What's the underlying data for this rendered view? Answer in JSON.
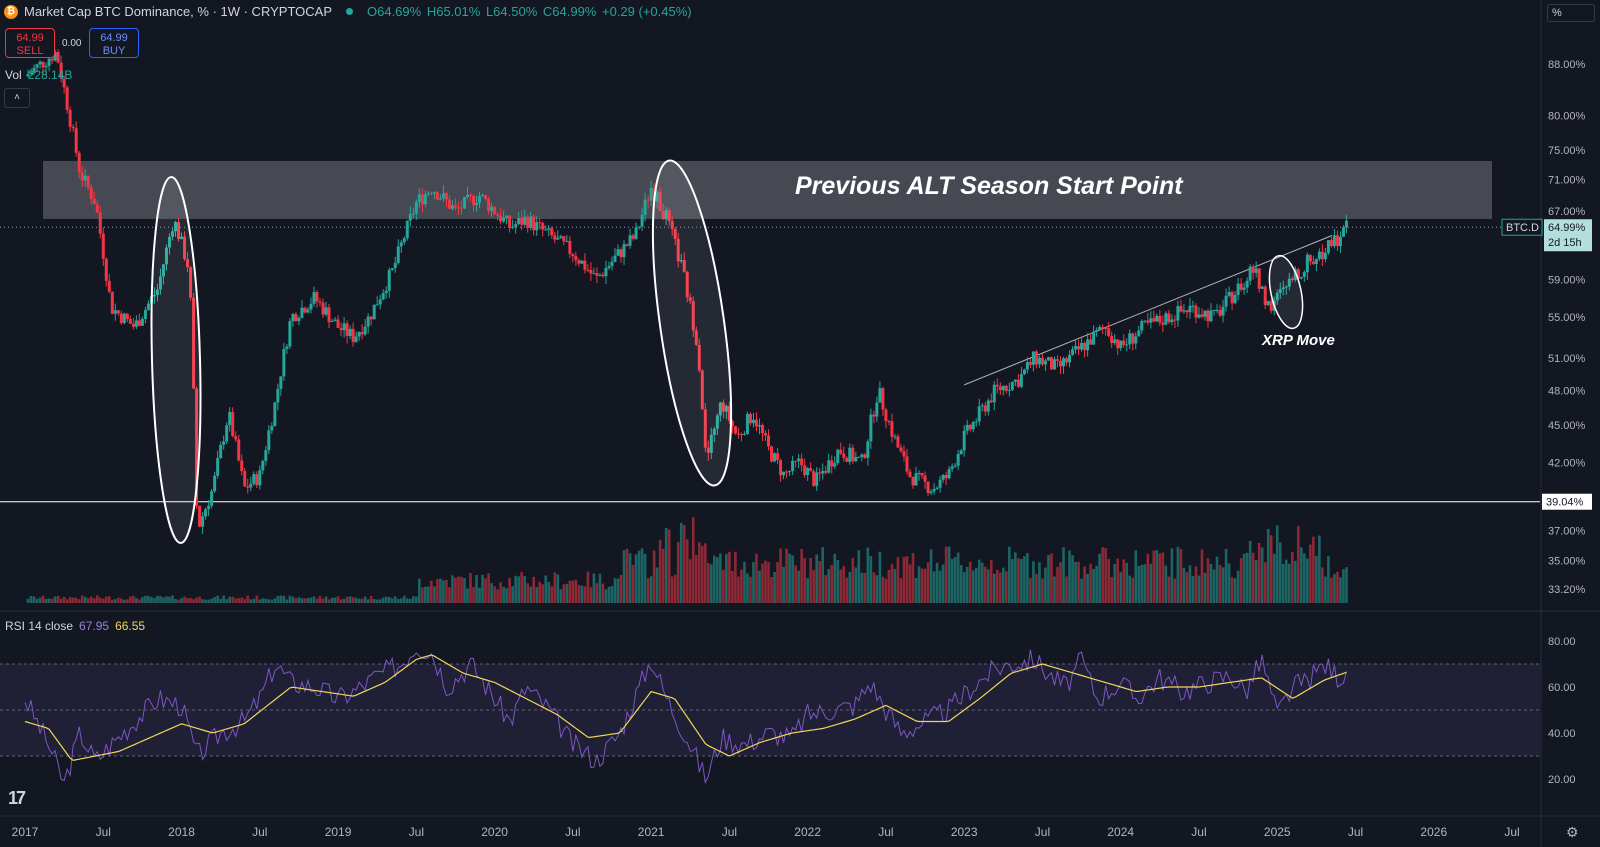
{
  "header": {
    "title": "Market Cap BTC Dominance, % · 1W · CRYPTOCAP",
    "coin_glyph": "₿",
    "open": "O64.69%",
    "high": "H65.01%",
    "low": "L64.50%",
    "close": "C64.99%",
    "change": "+0.29 (+0.45%)"
  },
  "trade": {
    "sell_price": "64.99",
    "sell_label": "SELL",
    "spread": "0.00",
    "buy_price": "64.99",
    "buy_label": "BUY"
  },
  "volume": {
    "label": "Vol",
    "value": "228.14B"
  },
  "collapse_icon": "˄",
  "rsi": {
    "label": "RSI 14 close",
    "value": "67.95",
    "ma_value": "66.55"
  },
  "scale_mode": "%",
  "logo": "17",
  "settings_icon": "⚙",
  "annotations": {
    "main": "Previous ALT Season Start Point",
    "xrp": "XRP Move"
  },
  "colors": {
    "background": "#131722",
    "up": "#26a69a",
    "down": "#f23645",
    "rsi": "#7e57c2",
    "rsi_ma": "#f0d75a",
    "zone": "#ffffff"
  },
  "chart_data": {
    "type": "candlestick",
    "title": "Market Cap BTC Dominance, % · 1W · CRYPTOCAP",
    "price_ticks": [
      "88.00%",
      "80.00%",
      "75.00%",
      "71.00%",
      "67.00%",
      "59.00%",
      "55.00%",
      "51.00%",
      "48.00%",
      "45.00%",
      "42.00%",
      "37.00%",
      "35.00%",
      "33.20%"
    ],
    "rsi_ticks": [
      "80.00",
      "60.00",
      "40.00",
      "20.00"
    ],
    "time_ticks": [
      "2017",
      "Jul",
      "2018",
      "Jul",
      "2019",
      "Jul",
      "2020",
      "Jul",
      "2021",
      "Jul",
      "2022",
      "Jul",
      "2023",
      "Jul",
      "2024",
      "Jul",
      "2025",
      "Jul",
      "2026",
      "Jul"
    ],
    "last_price_label": "BTC.D",
    "last_price": "64.99%",
    "countdown": "2d 15h",
    "horizontal_line_label": "39.04%",
    "horizontal_line_value": 39.04,
    "zone": {
      "from": 66.0,
      "to": 73.5
    },
    "rsi_bands": {
      "upper": 70,
      "mid": 50,
      "lower": 30
    },
    "price_path": [
      [
        2017.0,
        86
      ],
      [
        2017.2,
        90
      ],
      [
        2017.35,
        72
      ],
      [
        2017.45,
        68
      ],
      [
        2017.55,
        56
      ],
      [
        2017.7,
        54
      ],
      [
        2017.85,
        58
      ],
      [
        2017.95,
        66
      ],
      [
        2018.05,
        60
      ],
      [
        2018.1,
        37
      ],
      [
        2018.2,
        40
      ],
      [
        2018.3,
        46
      ],
      [
        2018.4,
        40
      ],
      [
        2018.5,
        41
      ],
      [
        2018.6,
        47
      ],
      [
        2018.7,
        55
      ],
      [
        2018.85,
        57
      ],
      [
        2019.0,
        54
      ],
      [
        2019.1,
        53
      ],
      [
        2019.2,
        55
      ],
      [
        2019.35,
        60
      ],
      [
        2019.5,
        68
      ],
      [
        2019.6,
        70
      ],
      [
        2019.75,
        67
      ],
      [
        2019.9,
        69
      ],
      [
        2020.0,
        67
      ],
      [
        2020.1,
        65
      ],
      [
        2020.2,
        66
      ],
      [
        2020.35,
        64
      ],
      [
        2020.5,
        62
      ],
      [
        2020.65,
        59
      ],
      [
        2020.8,
        62
      ],
      [
        2020.9,
        64
      ],
      [
        2021.0,
        70
      ],
      [
        2021.1,
        66
      ],
      [
        2021.2,
        60
      ],
      [
        2021.3,
        52
      ],
      [
        2021.35,
        42
      ],
      [
        2021.45,
        47
      ],
      [
        2021.55,
        44
      ],
      [
        2021.65,
        46
      ],
      [
        2021.75,
        43
      ],
      [
        2021.85,
        41
      ],
      [
        2021.95,
        42
      ],
      [
        2022.05,
        40.5
      ],
      [
        2022.2,
        43
      ],
      [
        2022.35,
        42
      ],
      [
        2022.45,
        48
      ],
      [
        2022.55,
        44
      ],
      [
        2022.65,
        41
      ],
      [
        2022.8,
        40
      ],
      [
        2022.9,
        41
      ],
      [
        2023.0,
        44
      ],
      [
        2023.1,
        46
      ],
      [
        2023.2,
        48
      ],
      [
        2023.35,
        49
      ],
      [
        2023.45,
        51
      ],
      [
        2023.6,
        50
      ],
      [
        2023.75,
        52
      ],
      [
        2023.9,
        54
      ],
      [
        2024.0,
        52
      ],
      [
        2024.15,
        54
      ],
      [
        2024.3,
        55
      ],
      [
        2024.45,
        56
      ],
      [
        2024.6,
        55
      ],
      [
        2024.75,
        58
      ],
      [
        2024.85,
        60
      ],
      [
        2024.95,
        56
      ],
      [
        2025.05,
        58
      ],
      [
        2025.2,
        61
      ],
      [
        2025.3,
        62
      ],
      [
        2025.4,
        64
      ],
      [
        2025.45,
        64.99
      ]
    ],
    "rsi_path": [
      [
        2017.0,
        55
      ],
      [
        2017.15,
        35
      ],
      [
        2017.25,
        18
      ],
      [
        2017.35,
        40
      ],
      [
        2017.45,
        28
      ],
      [
        2017.55,
        35
      ],
      [
        2017.7,
        45
      ],
      [
        2017.85,
        55
      ],
      [
        2018.0,
        52
      ],
      [
        2018.1,
        30
      ],
      [
        2018.25,
        40
      ],
      [
        2018.4,
        45
      ],
      [
        2018.5,
        55
      ],
      [
        2018.6,
        70
      ],
      [
        2018.7,
        62
      ],
      [
        2018.85,
        60
      ],
      [
        2019.0,
        55
      ],
      [
        2019.1,
        58
      ],
      [
        2019.25,
        65
      ],
      [
        2019.4,
        70
      ],
      [
        2019.5,
        78
      ],
      [
        2019.6,
        75
      ],
      [
        2019.7,
        60
      ],
      [
        2019.85,
        70
      ],
      [
        2020.0,
        55
      ],
      [
        2020.1,
        45
      ],
      [
        2020.2,
        60
      ],
      [
        2020.35,
        50
      ],
      [
        2020.5,
        35
      ],
      [
        2020.65,
        28
      ],
      [
        2020.8,
        40
      ],
      [
        2021.0,
        72
      ],
      [
        2021.1,
        55
      ],
      [
        2021.25,
        35
      ],
      [
        2021.35,
        20
      ],
      [
        2021.45,
        38
      ],
      [
        2021.6,
        35
      ],
      [
        2021.75,
        40
      ],
      [
        2021.9,
        38
      ],
      [
        2022.0,
        48
      ],
      [
        2022.15,
        50
      ],
      [
        2022.3,
        52
      ],
      [
        2022.4,
        62
      ],
      [
        2022.5,
        50
      ],
      [
        2022.6,
        40
      ],
      [
        2022.75,
        45
      ],
      [
        2022.9,
        50
      ],
      [
        2023.05,
        60
      ],
      [
        2023.2,
        68
      ],
      [
        2023.3,
        70
      ],
      [
        2023.45,
        72
      ],
      [
        2023.55,
        65
      ],
      [
        2023.65,
        60
      ],
      [
        2023.75,
        72
      ],
      [
        2023.85,
        55
      ],
      [
        2024.0,
        62
      ],
      [
        2024.1,
        55
      ],
      [
        2024.25,
        64
      ],
      [
        2024.4,
        58
      ],
      [
        2024.55,
        62
      ],
      [
        2024.7,
        65
      ],
      [
        2024.8,
        58
      ],
      [
        2024.9,
        72
      ],
      [
        2025.0,
        48
      ],
      [
        2025.1,
        60
      ],
      [
        2025.2,
        63
      ],
      [
        2025.3,
        70
      ],
      [
        2025.4,
        64
      ],
      [
        2025.45,
        68
      ]
    ],
    "rsi_ma_path": [
      [
        2017.0,
        45
      ],
      [
        2017.15,
        42
      ],
      [
        2017.3,
        28
      ],
      [
        2017.45,
        30
      ],
      [
        2017.6,
        32
      ],
      [
        2017.8,
        38
      ],
      [
        2018.0,
        44
      ],
      [
        2018.2,
        40
      ],
      [
        2018.4,
        44
      ],
      [
        2018.55,
        52
      ],
      [
        2018.7,
        60
      ],
      [
        2018.9,
        58
      ],
      [
        2019.1,
        56
      ],
      [
        2019.3,
        62
      ],
      [
        2019.5,
        72
      ],
      [
        2019.6,
        74
      ],
      [
        2019.8,
        66
      ],
      [
        2020.0,
        62
      ],
      [
        2020.2,
        55
      ],
      [
        2020.4,
        48
      ],
      [
        2020.6,
        38
      ],
      [
        2020.8,
        40
      ],
      [
        2021.0,
        58
      ],
      [
        2021.15,
        55
      ],
      [
        2021.35,
        35
      ],
      [
        2021.5,
        30
      ],
      [
        2021.7,
        36
      ],
      [
        2021.9,
        40
      ],
      [
        2022.1,
        42
      ],
      [
        2022.3,
        46
      ],
      [
        2022.5,
        52
      ],
      [
        2022.7,
        45
      ],
      [
        2022.9,
        45
      ],
      [
        2023.1,
        55
      ],
      [
        2023.3,
        66
      ],
      [
        2023.5,
        70
      ],
      [
        2023.7,
        66
      ],
      [
        2023.9,
        62
      ],
      [
        2024.1,
        58
      ],
      [
        2024.3,
        60
      ],
      [
        2024.5,
        60
      ],
      [
        2024.7,
        62
      ],
      [
        2024.9,
        64
      ],
      [
        2025.1,
        55
      ],
      [
        2025.3,
        63
      ],
      [
        2025.45,
        66.55
      ]
    ]
  }
}
